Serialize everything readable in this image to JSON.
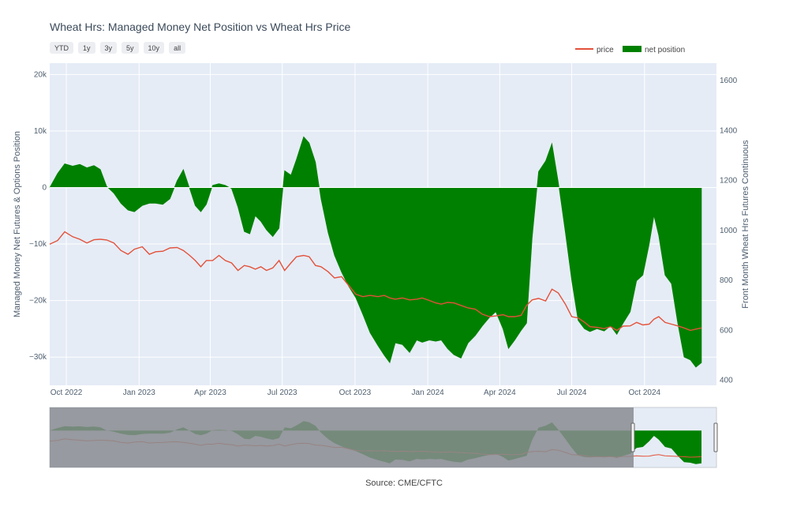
{
  "title": "Wheat Hrs: Managed Money Net Position vs Wheat Hrs Price",
  "range_buttons": [
    "YTD",
    "1y",
    "3y",
    "5y",
    "10y",
    "all"
  ],
  "source": "Source: CME/CFTC",
  "colors": {
    "price": "#e4513a",
    "net_position": "#008000",
    "plot_bg": "#e5ecf6",
    "grid": "#ffffff",
    "rangeslider_mask": "#8a8c90"
  },
  "chart_data": {
    "type": "area",
    "title": "Wheat Hrs: Managed Money Net Position vs Wheat Hrs Price",
    "x_tick_labels": [
      "Oct 2022",
      "Jan 2023",
      "Apr 2023",
      "Jul 2023",
      "Oct 2023",
      "Jan 2024",
      "Apr 2024",
      "Jul 2024",
      "Oct 2024"
    ],
    "x_ticks": [
      "2022-10-01",
      "2023-01-01",
      "2023-04-01",
      "2023-07-01",
      "2023-10-01",
      "2024-01-01",
      "2024-04-01",
      "2024-07-01",
      "2024-10-01"
    ],
    "x_range": [
      "2022-09-10",
      "2024-12-31"
    ],
    "y_left": {
      "label": "Managed Money Net Futures & Options Position",
      "range": [
        -35000,
        22000
      ],
      "ticks": [
        20000,
        10000,
        0,
        -10000,
        -20000,
        -30000
      ],
      "tick_labels": [
        "20k",
        "10k",
        "0",
        "−10k",
        "−20k",
        "−30k"
      ]
    },
    "y_right": {
      "label": "Front Month Wheat Hrs Futures Continuous",
      "range": [
        380,
        1670
      ],
      "ticks": [
        1600,
        1400,
        1200,
        1000,
        800,
        600,
        400
      ],
      "tick_labels": [
        "1600",
        "1400",
        "1200",
        "1000",
        "800",
        "600",
        "400"
      ]
    },
    "legend": {
      "position": "top-right",
      "entries": [
        "price",
        "net position"
      ]
    },
    "grid": true,
    "series": [
      {
        "name": "net position",
        "kind": "area",
        "axis": "left",
        "points": [
          [
            "2022-09-10",
            0
          ],
          [
            "2022-09-20",
            2500
          ],
          [
            "2022-09-29",
            4200
          ],
          [
            "2022-10-09",
            3800
          ],
          [
            "2022-10-18",
            4100
          ],
          [
            "2022-10-27",
            3500
          ],
          [
            "2022-11-05",
            3900
          ],
          [
            "2022-11-13",
            3200
          ],
          [
            "2022-11-21",
            200
          ],
          [
            "2022-11-30",
            -1000
          ],
          [
            "2022-12-09",
            -2800
          ],
          [
            "2022-12-18",
            -4000
          ],
          [
            "2022-12-26",
            -4300
          ],
          [
            "2023-01-05",
            -3200
          ],
          [
            "2023-01-14",
            -2800
          ],
          [
            "2023-01-22",
            -2800
          ],
          [
            "2023-01-31",
            -3000
          ],
          [
            "2023-02-09",
            -2000
          ],
          [
            "2023-02-18",
            1200
          ],
          [
            "2023-02-26",
            3200
          ],
          [
            "2023-03-06",
            -200
          ],
          [
            "2023-03-13",
            -3200
          ],
          [
            "2023-03-20",
            -4300
          ],
          [
            "2023-03-27",
            -3000
          ],
          [
            "2023-04-04",
            400
          ],
          [
            "2023-04-12",
            700
          ],
          [
            "2023-04-20",
            400
          ],
          [
            "2023-04-28",
            -200
          ],
          [
            "2023-05-06",
            -3500
          ],
          [
            "2023-05-14",
            -7800
          ],
          [
            "2023-05-21",
            -8200
          ],
          [
            "2023-05-28",
            -5000
          ],
          [
            "2023-06-04",
            -6000
          ],
          [
            "2023-06-11",
            -7500
          ],
          [
            "2023-06-19",
            -8700
          ],
          [
            "2023-06-27",
            -7200
          ],
          [
            "2023-07-04",
            3000
          ],
          [
            "2023-07-12",
            2200
          ],
          [
            "2023-07-19",
            5000
          ],
          [
            "2023-07-28",
            9000
          ],
          [
            "2023-08-04",
            7900
          ],
          [
            "2023-08-12",
            4500
          ],
          [
            "2023-08-19",
            -2000
          ],
          [
            "2023-08-28",
            -8000
          ],
          [
            "2023-09-05",
            -12000
          ],
          [
            "2023-09-14",
            -15000
          ],
          [
            "2023-09-23",
            -17500
          ],
          [
            "2023-10-02",
            -19500
          ],
          [
            "2023-10-11",
            -22500
          ],
          [
            "2023-10-20",
            -25700
          ],
          [
            "2023-10-30",
            -28000
          ],
          [
            "2023-11-07",
            -29700
          ],
          [
            "2023-11-14",
            -31000
          ],
          [
            "2023-11-21",
            -27500
          ],
          [
            "2023-11-30",
            -27800
          ],
          [
            "2023-12-09",
            -29200
          ],
          [
            "2023-12-18",
            -27000
          ],
          [
            "2023-12-25",
            -27400
          ],
          [
            "2024-01-03",
            -27000
          ],
          [
            "2024-01-11",
            -27200
          ],
          [
            "2024-01-18",
            -27000
          ],
          [
            "2024-01-26",
            -28500
          ],
          [
            "2024-02-03",
            -29600
          ],
          [
            "2024-02-12",
            -30200
          ],
          [
            "2024-02-21",
            -27500
          ],
          [
            "2024-03-01",
            -26200
          ],
          [
            "2024-03-10",
            -24500
          ],
          [
            "2024-03-19",
            -23000
          ],
          [
            "2024-03-27",
            -22000
          ],
          [
            "2024-04-05",
            -25000
          ],
          [
            "2024-04-12",
            -28500
          ],
          [
            "2024-04-20",
            -27000
          ],
          [
            "2024-04-28",
            -25300
          ],
          [
            "2024-05-05",
            -24000
          ],
          [
            "2024-05-12",
            -9000
          ],
          [
            "2024-05-20",
            2800
          ],
          [
            "2024-05-29",
            4700
          ],
          [
            "2024-06-06",
            7800
          ],
          [
            "2024-06-14",
            1000
          ],
          [
            "2024-06-23",
            -8000
          ],
          [
            "2024-07-01",
            -16500
          ],
          [
            "2024-07-09",
            -23500
          ],
          [
            "2024-07-17",
            -25000
          ],
          [
            "2024-07-24",
            -25500
          ],
          [
            "2024-08-02",
            -25000
          ],
          [
            "2024-08-11",
            -25400
          ],
          [
            "2024-08-19",
            -24500
          ],
          [
            "2024-08-27",
            -26000
          ],
          [
            "2024-09-04",
            -24000
          ],
          [
            "2024-09-13",
            -22000
          ],
          [
            "2024-09-21",
            -16500
          ],
          [
            "2024-09-29",
            -15500
          ],
          [
            "2024-10-07",
            -10000
          ],
          [
            "2024-10-13",
            -5000
          ],
          [
            "2024-10-19",
            -8500
          ],
          [
            "2024-10-27",
            -15500
          ],
          [
            "2024-11-04",
            -17000
          ],
          [
            "2024-11-12",
            -24000
          ],
          [
            "2024-11-20",
            -30000
          ],
          [
            "2024-11-28",
            -30500
          ],
          [
            "2024-12-05",
            -31800
          ],
          [
            "2024-12-12",
            -31000
          ]
        ]
      },
      {
        "name": "price",
        "kind": "line",
        "axis": "right",
        "points": [
          [
            "2022-09-10",
            945
          ],
          [
            "2022-09-20",
            960
          ],
          [
            "2022-09-29",
            995
          ],
          [
            "2022-10-09",
            975
          ],
          [
            "2022-10-18",
            965
          ],
          [
            "2022-10-27",
            950
          ],
          [
            "2022-11-05",
            963
          ],
          [
            "2022-11-13",
            965
          ],
          [
            "2022-11-21",
            962
          ],
          [
            "2022-11-30",
            950
          ],
          [
            "2022-12-09",
            920
          ],
          [
            "2022-12-18",
            905
          ],
          [
            "2022-12-26",
            925
          ],
          [
            "2023-01-05",
            935
          ],
          [
            "2023-01-14",
            905
          ],
          [
            "2023-01-22",
            915
          ],
          [
            "2023-01-31",
            917
          ],
          [
            "2023-02-09",
            930
          ],
          [
            "2023-02-18",
            932
          ],
          [
            "2023-02-26",
            920
          ],
          [
            "2023-03-06",
            900
          ],
          [
            "2023-03-13",
            880
          ],
          [
            "2023-03-20",
            855
          ],
          [
            "2023-03-27",
            880
          ],
          [
            "2023-04-04",
            880
          ],
          [
            "2023-04-12",
            900
          ],
          [
            "2023-04-20",
            880
          ],
          [
            "2023-04-28",
            870
          ],
          [
            "2023-05-06",
            840
          ],
          [
            "2023-05-14",
            860
          ],
          [
            "2023-05-21",
            855
          ],
          [
            "2023-05-28",
            845
          ],
          [
            "2023-06-04",
            855
          ],
          [
            "2023-06-11",
            840
          ],
          [
            "2023-06-19",
            850
          ],
          [
            "2023-06-27",
            880
          ],
          [
            "2023-07-04",
            840
          ],
          [
            "2023-07-12",
            870
          ],
          [
            "2023-07-19",
            895
          ],
          [
            "2023-07-28",
            900
          ],
          [
            "2023-08-04",
            895
          ],
          [
            "2023-08-12",
            860
          ],
          [
            "2023-08-19",
            855
          ],
          [
            "2023-08-28",
            835
          ],
          [
            "2023-09-05",
            810
          ],
          [
            "2023-09-14",
            815
          ],
          [
            "2023-09-23",
            780
          ],
          [
            "2023-10-02",
            745
          ],
          [
            "2023-10-11",
            735
          ],
          [
            "2023-10-20",
            740
          ],
          [
            "2023-10-30",
            735
          ],
          [
            "2023-11-07",
            740
          ],
          [
            "2023-11-14",
            730
          ],
          [
            "2023-11-21",
            725
          ],
          [
            "2023-11-30",
            730
          ],
          [
            "2023-12-09",
            722
          ],
          [
            "2023-12-18",
            725
          ],
          [
            "2023-12-25",
            730
          ],
          [
            "2024-01-03",
            720
          ],
          [
            "2024-01-11",
            710
          ],
          [
            "2024-01-18",
            705
          ],
          [
            "2024-01-26",
            712
          ],
          [
            "2024-02-03",
            710
          ],
          [
            "2024-02-12",
            700
          ],
          [
            "2024-02-21",
            690
          ],
          [
            "2024-03-01",
            685
          ],
          [
            "2024-03-10",
            665
          ],
          [
            "2024-03-19",
            655
          ],
          [
            "2024-03-27",
            658
          ],
          [
            "2024-04-05",
            663
          ],
          [
            "2024-04-12",
            655
          ],
          [
            "2024-04-20",
            655
          ],
          [
            "2024-04-28",
            660
          ],
          [
            "2024-05-05",
            700
          ],
          [
            "2024-05-12",
            722
          ],
          [
            "2024-05-20",
            728
          ],
          [
            "2024-05-29",
            718
          ],
          [
            "2024-06-06",
            765
          ],
          [
            "2024-06-14",
            750
          ],
          [
            "2024-06-23",
            705
          ],
          [
            "2024-07-01",
            655
          ],
          [
            "2024-07-09",
            650
          ],
          [
            "2024-07-17",
            633
          ],
          [
            "2024-07-24",
            615
          ],
          [
            "2024-08-02",
            612
          ],
          [
            "2024-08-11",
            607
          ],
          [
            "2024-08-19",
            615
          ],
          [
            "2024-08-27",
            600
          ],
          [
            "2024-09-04",
            617
          ],
          [
            "2024-09-13",
            618
          ],
          [
            "2024-09-21",
            632
          ],
          [
            "2024-09-29",
            622
          ],
          [
            "2024-10-07",
            625
          ],
          [
            "2024-10-13",
            645
          ],
          [
            "2024-10-19",
            655
          ],
          [
            "2024-10-27",
            632
          ],
          [
            "2024-11-04",
            625
          ],
          [
            "2024-11-12",
            618
          ],
          [
            "2024-11-20",
            610
          ],
          [
            "2024-11-28",
            600
          ],
          [
            "2024-12-05",
            605
          ],
          [
            "2024-12-12",
            610
          ]
        ]
      }
    ]
  }
}
